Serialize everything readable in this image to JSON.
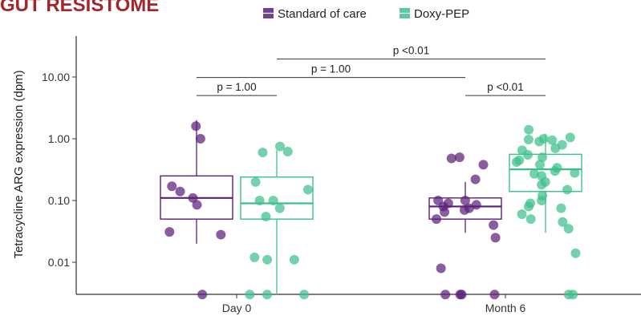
{
  "title": "GUT RESISTOME",
  "chart_data": {
    "type": "box",
    "ylabel": "Tetracycline ARG expression (dpm)",
    "yscale": "log",
    "ylim": [
      0.003,
      40
    ],
    "yticks": [
      {
        "value": 10,
        "label": "10.00"
      },
      {
        "value": 1,
        "label": "1.00"
      },
      {
        "value": 0.1,
        "label": "0.10"
      },
      {
        "value": 0.01,
        "label": "0.01"
      }
    ],
    "categories": [
      "Day 0",
      "Month 6"
    ],
    "legend_position": "top",
    "series": [
      {
        "name": "Standard of care",
        "color": "#5b1f78",
        "boxes": [
          {
            "category": "Day 0",
            "q1": 0.05,
            "median": 0.11,
            "q3": 0.25,
            "whisker_low": 0.02,
            "whisker_high": 2.0,
            "points": [
              1.6,
              1.0,
              0.17,
              0.14,
              0.11,
              0.085,
              0.031,
              0.028,
              0.003
            ]
          },
          {
            "category": "Month 6",
            "q1": 0.05,
            "median": 0.08,
            "q3": 0.11,
            "whisker_low": 0.03,
            "whisker_high": 0.2,
            "points": [
              0.5,
              0.48,
              0.38,
              0.22,
              0.1,
              0.1,
              0.09,
              0.085,
              0.08,
              0.075,
              0.07,
              0.065,
              0.05,
              0.04,
              0.025,
              0.008,
              0.003,
              0.003,
              0.003,
              0.003
            ]
          }
        ]
      },
      {
        "name": "Doxy-PEP",
        "color": "#3dbf8c",
        "boxes": [
          {
            "category": "Day 0",
            "q1": 0.05,
            "median": 0.09,
            "q3": 0.24,
            "whisker_low": 0.003,
            "whisker_high": 0.65,
            "points": [
              0.75,
              0.62,
              0.6,
              0.2,
              0.15,
              0.1,
              0.1,
              0.075,
              0.055,
              0.012,
              0.011,
              0.011,
              0.003,
              0.003,
              0.003
            ]
          },
          {
            "category": "Month 6",
            "q1": 0.14,
            "median": 0.32,
            "q3": 0.56,
            "whisker_low": 0.03,
            "whisker_high": 1.2,
            "points": [
              1.4,
              1.05,
              1.0,
              0.97,
              0.95,
              0.9,
              0.8,
              0.7,
              0.65,
              0.55,
              0.5,
              0.45,
              0.42,
              0.38,
              0.34,
              0.3,
              0.28,
              0.27,
              0.25,
              0.2,
              0.18,
              0.15,
              0.12,
              0.1,
              0.09,
              0.08,
              0.075,
              0.06,
              0.05,
              0.045,
              0.035,
              0.014,
              0.003,
              0.003
            ]
          }
        ]
      }
    ],
    "comparisons": [
      {
        "label": "p = 1.00",
        "from": "Day 0 / Standard of care",
        "to": "Day 0 / Doxy-PEP",
        "y_value": 5.0
      },
      {
        "label": "p = 1.00",
        "from": "Day 0 / Standard of care",
        "to": "Month 6 / Standard of care",
        "y_value": 9.8
      },
      {
        "label": "p <0.01",
        "from": "Day 0 / Doxy-PEP",
        "to": "Month 6 / Doxy-PEP",
        "y_value": 19.5
      },
      {
        "label": "p <0.01",
        "from": "Month 6 / Standard of care",
        "to": "Month 6 / Doxy-PEP",
        "y_value": 5.0
      }
    ]
  }
}
